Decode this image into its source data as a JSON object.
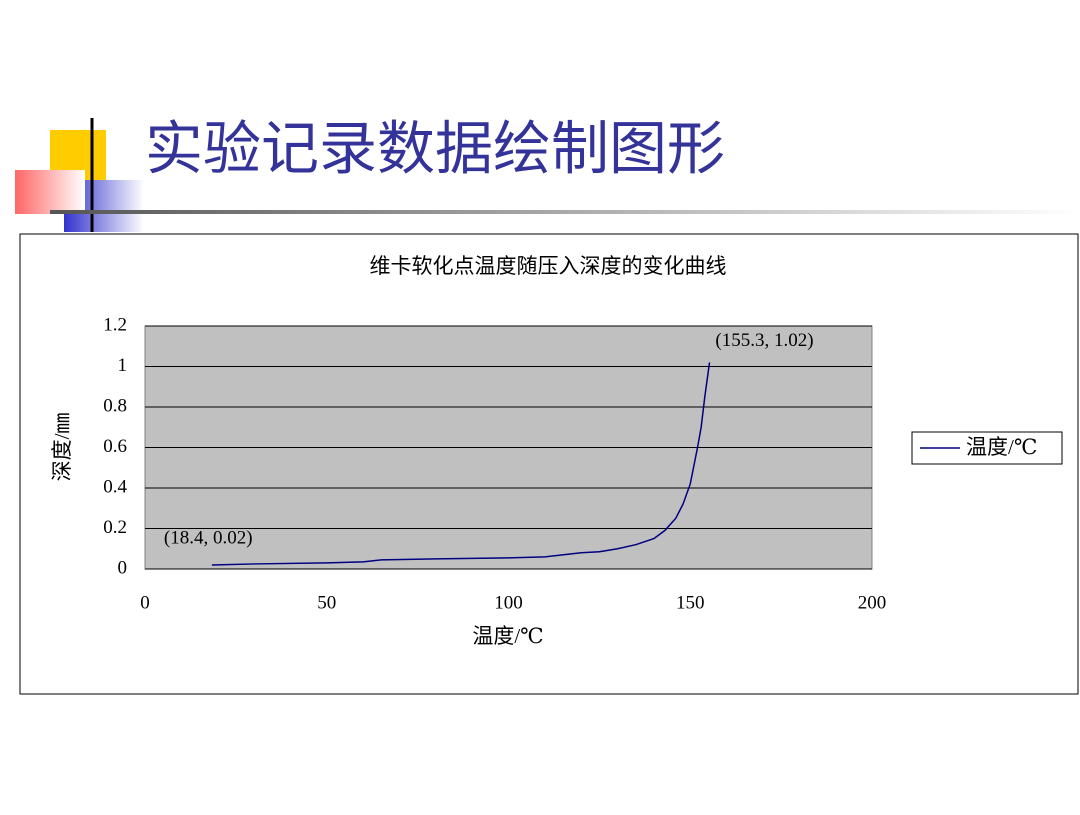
{
  "slide_title": "实验记录数据绘制图形",
  "chart_data": {
    "type": "line",
    "title": "维卡软化点温度随压入深度的变化曲线",
    "x_label": "温度/℃",
    "y_label": "深度/㎜",
    "x": [
      18.4,
      30,
      50,
      60,
      65,
      80,
      100,
      110,
      120,
      125,
      130,
      135,
      140,
      143,
      146,
      148,
      150,
      152,
      153,
      154,
      155.3
    ],
    "series": [
      {
        "name": "温度/℃",
        "color": "#000080",
        "values": [
          0.02,
          0.025,
          0.03,
          0.035,
          0.045,
          0.05,
          0.055,
          0.06,
          0.08,
          0.085,
          0.1,
          0.12,
          0.15,
          0.19,
          0.25,
          0.32,
          0.42,
          0.6,
          0.7,
          0.85,
          1.02
        ]
      }
    ],
    "annotations": [
      "(18.4, 0.02)",
      "(155.3, 1.02)"
    ],
    "xlim": [
      0,
      200
    ],
    "xticks": [
      0,
      50,
      100,
      150,
      200
    ],
    "ylim": [
      0,
      1.2
    ],
    "yticks": [
      0,
      0.2,
      0.4,
      0.6,
      0.8,
      1,
      1.2
    ],
    "grid": true,
    "plot_background": "#c0c0c0",
    "legend": "right"
  }
}
